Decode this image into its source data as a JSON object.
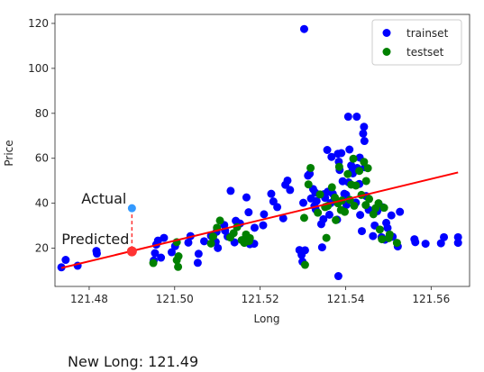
{
  "chart_data": {
    "type": "scatter",
    "xlabel": "Long",
    "ylabel": "Price",
    "xlim": [
      121.472,
      121.569
    ],
    "ylim": [
      3,
      124
    ],
    "x_ticks": [
      121.48,
      121.5,
      121.52,
      121.54,
      121.56
    ],
    "x_tick_labels": [
      "121.48",
      "121.50",
      "121.52",
      "121.54",
      "121.56"
    ],
    "y_ticks": [
      20,
      40,
      60,
      80,
      100,
      120
    ],
    "y_tick_labels": [
      "20",
      "40",
      "60",
      "80",
      "100",
      "120"
    ],
    "grid": false,
    "legend_position": "top-right",
    "series": [
      {
        "name": "trainset",
        "color": "#0000ff",
        "points": [
          [
            121.4735,
            11.5
          ],
          [
            121.4745,
            14.8
          ],
          [
            121.4773,
            12.2
          ],
          [
            121.4817,
            18.8
          ],
          [
            121.4818,
            17.6
          ],
          [
            121.4951,
            14.5
          ],
          [
            121.4954,
            17.8
          ],
          [
            121.4957,
            21.6
          ],
          [
            121.4961,
            23.4
          ],
          [
            121.4968,
            15.8
          ],
          [
            121.4975,
            24.6
          ],
          [
            121.4993,
            18.2
          ],
          [
            121.5001,
            20.9
          ],
          [
            121.5032,
            22.5
          ],
          [
            121.5037,
            25.4
          ],
          [
            121.5054,
            13.5
          ],
          [
            121.5056,
            17.5
          ],
          [
            121.5069,
            23.1
          ],
          [
            121.5085,
            25.5
          ],
          [
            121.5096,
            22.8
          ],
          [
            121.5098,
            27.3
          ],
          [
            121.5101,
            20.1
          ],
          [
            121.5116,
            30.3
          ],
          [
            121.5118,
            27.8
          ],
          [
            121.5124,
            25.2
          ],
          [
            121.5131,
            45.5
          ],
          [
            121.514,
            22.6
          ],
          [
            121.5143,
            32.2
          ],
          [
            121.5148,
            30.6
          ],
          [
            121.5153,
            31.0
          ],
          [
            121.5167,
            24.9
          ],
          [
            121.5168,
            42.6
          ],
          [
            121.5173,
            36.0
          ],
          [
            121.5176,
            21.8
          ],
          [
            121.5186,
            22.0
          ],
          [
            121.5187,
            29.1
          ],
          [
            121.5207,
            30.2
          ],
          [
            121.5209,
            35.1
          ],
          [
            121.5226,
            44.2
          ],
          [
            121.5231,
            40.8
          ],
          [
            121.524,
            38.3
          ],
          [
            121.5254,
            33.3
          ],
          [
            121.5259,
            48.2
          ],
          [
            121.5264,
            50.1
          ],
          [
            121.527,
            45.9
          ],
          [
            121.5292,
            19.2
          ],
          [
            121.5297,
            17.0
          ],
          [
            121.5299,
            14.0
          ],
          [
            121.5301,
            40.2
          ],
          [
            121.5303,
            117.5
          ],
          [
            121.5305,
            19.1
          ],
          [
            121.5312,
            52.3
          ],
          [
            121.5316,
            53.1
          ],
          [
            121.5319,
            42.1
          ],
          [
            121.5324,
            46.3
          ],
          [
            121.5327,
            38.8
          ],
          [
            121.5329,
            44.7
          ],
          [
            121.533,
            37.3
          ],
          [
            121.5332,
            41.0
          ],
          [
            121.5343,
            30.7
          ],
          [
            121.5345,
            20.4
          ],
          [
            121.5348,
            32.9
          ],
          [
            121.5349,
            44.0
          ],
          [
            121.5352,
            42.4
          ],
          [
            121.5357,
            63.7
          ],
          [
            121.5358,
            45.1
          ],
          [
            121.5362,
            34.9
          ],
          [
            121.5365,
            40.1
          ],
          [
            121.5367,
            60.6
          ],
          [
            121.537,
            44.2
          ],
          [
            121.5374,
            41.9
          ],
          [
            121.538,
            32.7
          ],
          [
            121.5382,
            62.0
          ],
          [
            121.5383,
            7.6
          ],
          [
            121.5384,
            58.5
          ],
          [
            121.5386,
            54.8
          ],
          [
            121.539,
            62.3
          ],
          [
            121.5393,
            49.8
          ],
          [
            121.5397,
            44.2
          ],
          [
            121.5401,
            43.8
          ],
          [
            121.5402,
            39.3
          ],
          [
            121.5406,
            78.5
          ],
          [
            121.5407,
            49.3
          ],
          [
            121.5409,
            63.9
          ],
          [
            121.5413,
            56.8
          ],
          [
            121.5415,
            54.1
          ],
          [
            121.5417,
            53.3
          ],
          [
            121.5424,
            40.3
          ],
          [
            121.5426,
            78.5
          ],
          [
            121.5427,
            55.7
          ],
          [
            121.5432,
            48.6
          ],
          [
            121.5433,
            60.3
          ],
          [
            121.5434,
            34.8
          ],
          [
            121.5438,
            27.6
          ],
          [
            121.5441,
            71.0
          ],
          [
            121.5443,
            74.0
          ],
          [
            121.5444,
            67.7
          ],
          [
            121.5445,
            56.0
          ],
          [
            121.5448,
            43.2
          ],
          [
            121.5454,
            37.1
          ],
          [
            121.5464,
            25.4
          ],
          [
            121.5468,
            30.1
          ],
          [
            121.5474,
            36.5
          ],
          [
            121.5484,
            24.9
          ],
          [
            121.5487,
            38.2
          ],
          [
            121.5492,
            23.8
          ],
          [
            121.5495,
            31.3
          ],
          [
            121.5498,
            29.0
          ],
          [
            121.5507,
            34.6
          ],
          [
            121.551,
            25.1
          ],
          [
            121.5522,
            20.8
          ],
          [
            121.5527,
            36.2
          ],
          [
            121.5561,
            24.0
          ],
          [
            121.5563,
            22.7
          ],
          [
            121.5587,
            22.0
          ],
          [
            121.5623,
            22.2
          ],
          [
            121.563,
            24.9
          ],
          [
            121.5663,
            24.9
          ],
          [
            121.5663,
            22.4
          ]
        ]
      },
      {
        "name": "testset",
        "color": "#008000",
        "points": [
          [
            121.495,
            13.4
          ],
          [
            121.5005,
            14.7
          ],
          [
            121.5008,
            11.7
          ],
          [
            121.5009,
            16.4
          ],
          [
            121.5005,
            22.7
          ],
          [
            121.5085,
            22.1
          ],
          [
            121.509,
            25.2
          ],
          [
            121.5099,
            29.1
          ],
          [
            121.5106,
            32.3
          ],
          [
            121.513,
            24.8
          ],
          [
            121.5138,
            26.7
          ],
          [
            121.5146,
            29.4
          ],
          [
            121.5157,
            23.6
          ],
          [
            121.5163,
            22.4
          ],
          [
            121.5167,
            26.1
          ],
          [
            121.5174,
            23.2
          ],
          [
            121.5176,
            24.5
          ],
          [
            121.5303,
            33.5
          ],
          [
            121.5305,
            12.6
          ],
          [
            121.5313,
            48.4
          ],
          [
            121.5318,
            55.7
          ],
          [
            121.5335,
            35.8
          ],
          [
            121.534,
            43.9
          ],
          [
            121.5352,
            38.3
          ],
          [
            121.5355,
            24.6
          ],
          [
            121.5358,
            38.8
          ],
          [
            121.5368,
            47.1
          ],
          [
            121.5375,
            42.5
          ],
          [
            121.5377,
            32.5
          ],
          [
            121.5382,
            40.0
          ],
          [
            121.5385,
            56.2
          ],
          [
            121.5389,
            37.0
          ],
          [
            121.5391,
            41.2
          ],
          [
            121.5398,
            36.2
          ],
          [
            121.5405,
            53.0
          ],
          [
            121.541,
            41.5
          ],
          [
            121.5413,
            48.3
          ],
          [
            121.5418,
            59.8
          ],
          [
            121.542,
            38.9
          ],
          [
            121.5424,
            47.9
          ],
          [
            121.5432,
            54.4
          ],
          [
            121.5437,
            43.7
          ],
          [
            121.5443,
            58.4
          ],
          [
            121.5447,
            39.2
          ],
          [
            121.5448,
            49.9
          ],
          [
            121.5452,
            55.6
          ],
          [
            121.5455,
            41.9
          ],
          [
            121.5465,
            35.1
          ],
          [
            121.547,
            37.8
          ],
          [
            121.5477,
            40.0
          ],
          [
            121.548,
            28.3
          ],
          [
            121.5485,
            24.0
          ],
          [
            121.549,
            38.0
          ],
          [
            121.5501,
            24.5
          ],
          [
            121.5503,
            26.1
          ],
          [
            121.552,
            22.4
          ]
        ]
      }
    ],
    "regression_line": {
      "color": "#ff0000",
      "x": [
        121.4735,
        121.5663
      ],
      "y": [
        11.2,
        53.7
      ]
    },
    "annotations": {
      "new_x": 121.49,
      "actual_value": 37.8,
      "predicted_value": 18.6,
      "actual_label": "Actual",
      "predicted_label": "Predicted",
      "actual_color": "#3399ff",
      "predicted_color": "#ff3333"
    }
  },
  "caption": {
    "text": "New Long: 121.49"
  }
}
